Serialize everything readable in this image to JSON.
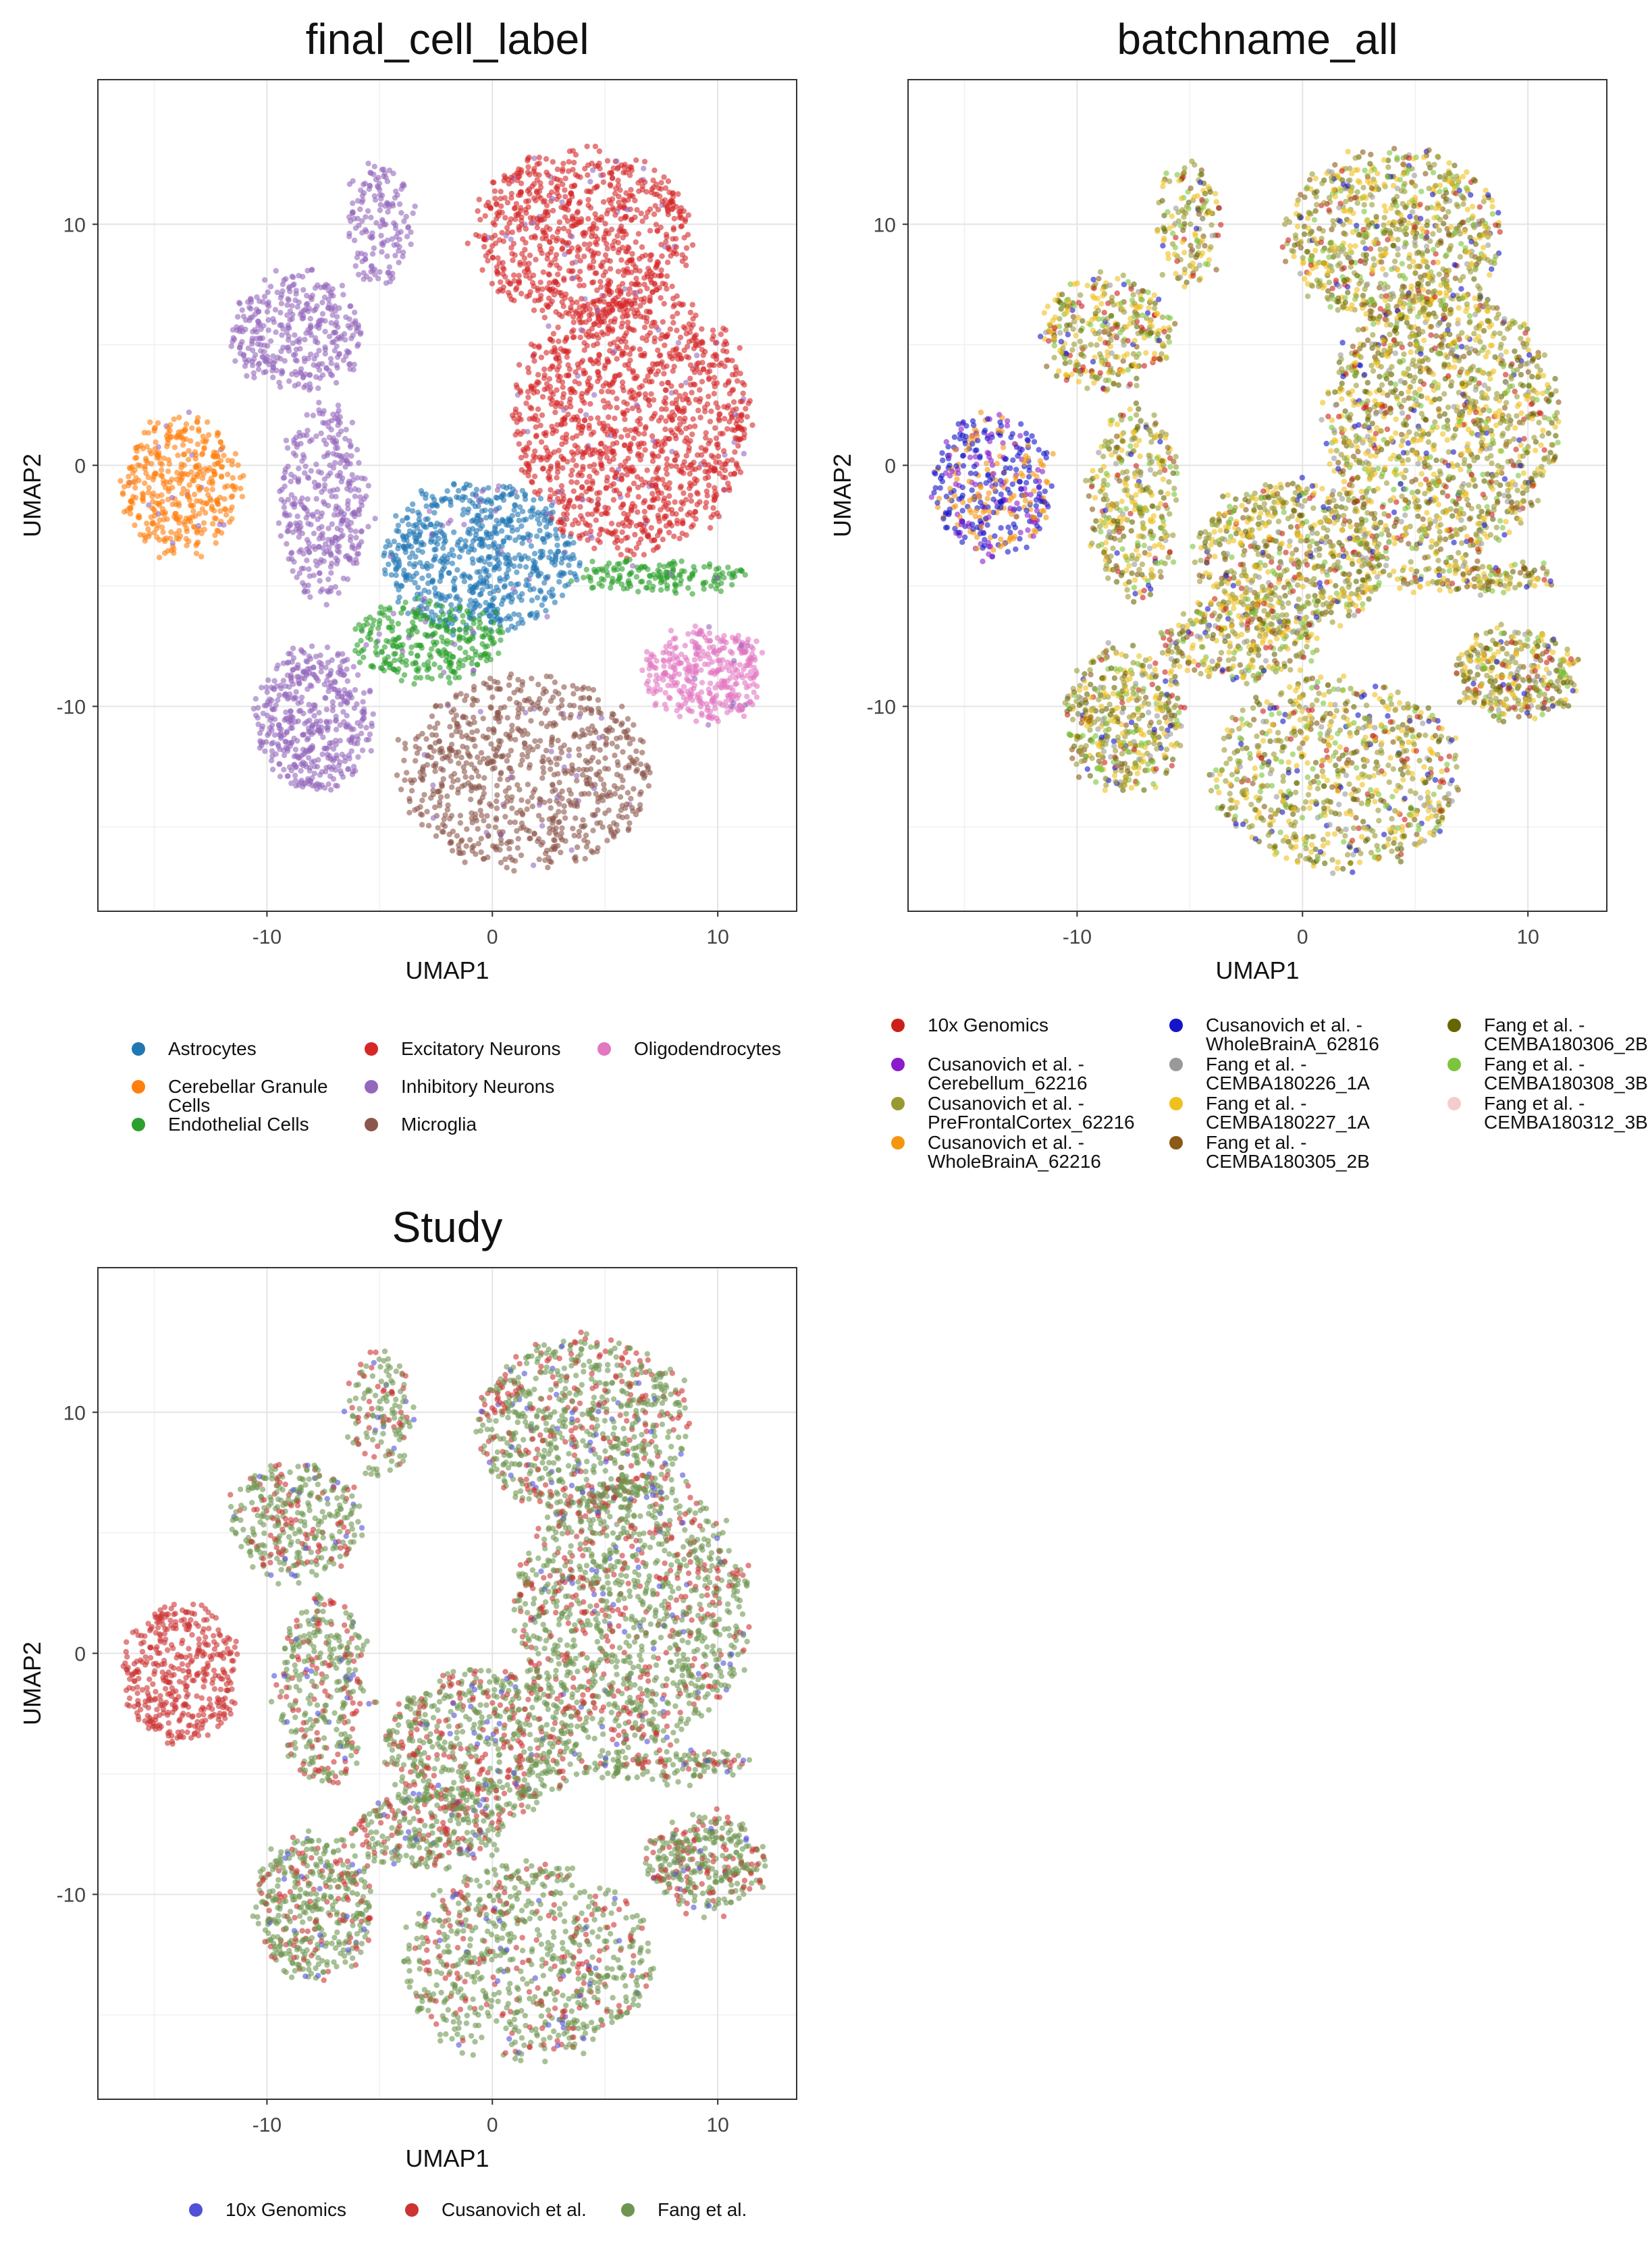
{
  "chart_data": [
    {
      "type": "scatter",
      "title": "final_cell_label",
      "xlabel": "UMAP1",
      "ylabel": "UMAP2",
      "xlim": [
        -17.5,
        13.5
      ],
      "ylim": [
        -18.5,
        16
      ],
      "xticks": [
        -10,
        0,
        10
      ],
      "yticks": [
        -10,
        0,
        10
      ],
      "grid": true,
      "legend_position": "bottom",
      "series": [
        {
          "name": "Astrocytes",
          "color": "#1f77b4",
          "cx": -0.5,
          "cy": -3.8,
          "rx": 4.3,
          "ry": 3.1,
          "density": 700
        },
        {
          "name": "Cerebellar Granule\nCells",
          "color": "#ff7f0e",
          "cx": -13.8,
          "cy": -0.8,
          "rx": 2.6,
          "ry": 2.9,
          "density": 400
        },
        {
          "name": "Endothelial Cells",
          "color": "#2ca02c",
          "cx": -2.8,
          "cy": -7.3,
          "rx": 3.4,
          "ry": 1.6,
          "density": 300
        },
        {
          "name": "Excitatory Neurons",
          "color": "#d62728",
          "cx": 5.5,
          "cy": 5.5,
          "rx": 8.0,
          "ry": 8.0,
          "density": 2200
        },
        {
          "name": "Inhibitory Neurons",
          "color": "#9467bd",
          "cx": -8.0,
          "cy": 0.5,
          "rx": 3.0,
          "ry": 12.0,
          "density": 1200
        },
        {
          "name": "Microglia",
          "color": "#8c564b",
          "cx": 1.5,
          "cy": -12.8,
          "rx": 5.5,
          "ry": 4.0,
          "density": 800
        },
        {
          "name": "Oligodendrocytes",
          "color": "#e377c2",
          "cx": 9.5,
          "cy": -8.7,
          "rx": 2.7,
          "ry": 1.9,
          "density": 350
        }
      ]
    },
    {
      "type": "scatter",
      "title": "batchname_all",
      "xlabel": "UMAP1",
      "ylabel": "UMAP2",
      "xlim": [
        -17.5,
        13.5
      ],
      "ylim": [
        -18.5,
        16
      ],
      "xticks": [
        -10,
        0,
        10
      ],
      "yticks": [
        -10,
        0,
        10
      ],
      "grid": true,
      "legend_position": "bottom",
      "series": [
        {
          "name": "10x Genomics",
          "color": "#cc1f1a"
        },
        {
          "name": "Cusanovich et al. -\nCerebellum_62216",
          "color": "#8a1ccc"
        },
        {
          "name": "Cusanovich et al. -\nPreFrontalCortex_62216",
          "color": "#999933"
        },
        {
          "name": "Cusanovich et al. -\nWholeBrainA_62216",
          "color": "#f5960f"
        },
        {
          "name": "Cusanovich et al. -\nWholeBrainA_62816",
          "color": "#1414c8"
        },
        {
          "name": "Fang et al. -\nCEMBA180226_1A",
          "color": "#999999"
        },
        {
          "name": "Fang et al. -\nCEMBA180227_1A",
          "color": "#f0c01e"
        },
        {
          "name": "Fang et al. -\nCEMBA180305_2B",
          "color": "#8c5a14"
        },
        {
          "name": "Fang et al. -\nCEMBA180306_2B",
          "color": "#666600"
        },
        {
          "name": "Fang et al. -\nCEMBA180308_3B",
          "color": "#7cc43c"
        },
        {
          "name": "Fang et al. -\nCEMBA180312_3B",
          "color": "#f5cccc"
        }
      ]
    },
    {
      "type": "scatter",
      "title": "Study",
      "xlabel": "UMAP1",
      "ylabel": "UMAP2",
      "xlim": [
        -17.5,
        13.5
      ],
      "ylim": [
        -18.5,
        16
      ],
      "xticks": [
        -10,
        0,
        10
      ],
      "yticks": [
        -10,
        0,
        10
      ],
      "grid": true,
      "legend_position": "bottom",
      "series": [
        {
          "name": "10x Genomics",
          "color": "#5050d8"
        },
        {
          "name": "Cusanovich et al.",
          "color": "#cc3333"
        },
        {
          "name": "Fang et al.",
          "color": "#6e9650"
        }
      ]
    }
  ]
}
